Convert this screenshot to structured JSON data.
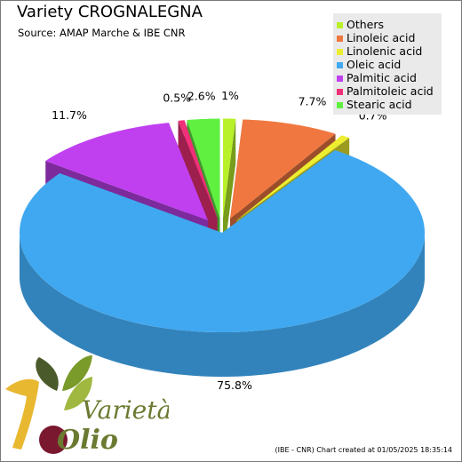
{
  "chart_data": {
    "type": "pie",
    "title": "Variety CROGNALEGNA",
    "subtitle": "Source: AMAP Marche & IBE CNR",
    "slices": [
      {
        "label": "Others",
        "value": 1.0,
        "display": "1%",
        "color": "#b8f02a"
      },
      {
        "label": "Linoleic acid",
        "value": 7.7,
        "display": "7.7%",
        "color": "#f07840"
      },
      {
        "label": "Linolenic acid",
        "value": 0.7,
        "display": "0.7%",
        "color": "#eeee30"
      },
      {
        "label": "Oleic acid",
        "value": 75.8,
        "display": "75.8%",
        "color": "#40a8f0"
      },
      {
        "label": "Palmitic acid",
        "value": 11.7,
        "display": "11.7%",
        "color": "#c040f0"
      },
      {
        "label": "Palmitoleic acid",
        "value": 0.5,
        "display": "0.5%",
        "color": "#f03078"
      },
      {
        "label": "Stearic acid",
        "value": 2.6,
        "display": "2.6%",
        "color": "#60f040"
      }
    ],
    "legend_position": "top-right"
  },
  "credit": "(IBE - CNR) Chart created at 01/05/2025 18:35:14",
  "logo": {
    "word1": "Varietà",
    "word2": "Olio"
  }
}
